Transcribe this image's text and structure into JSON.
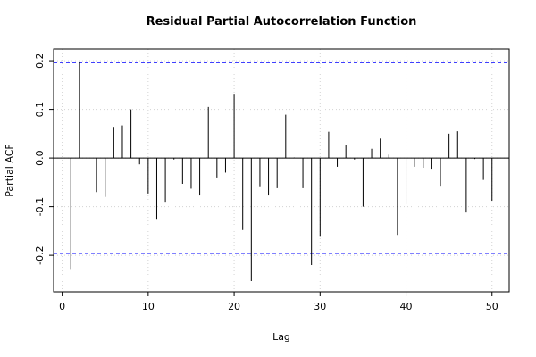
{
  "chart_data": {
    "type": "pacf",
    "title": "Residual Partial Autocorrelation Function",
    "x_label": "Lag",
    "y_label": "Partial ACF",
    "x": [
      1,
      2,
      3,
      4,
      5,
      6,
      7,
      8,
      9,
      10,
      11,
      12,
      13,
      14,
      15,
      16,
      17,
      18,
      19,
      20,
      21,
      22,
      23,
      24,
      25,
      26,
      27,
      28,
      29,
      30,
      31,
      32,
      33,
      34,
      35,
      36,
      37,
      38,
      39,
      40,
      41,
      42,
      43,
      44,
      45,
      46,
      47,
      48,
      49,
      50
    ],
    "values": [
      -0.228,
      0.197,
      0.083,
      -0.07,
      -0.08,
      0.064,
      0.067,
      0.1,
      -0.013,
      -0.073,
      -0.125,
      -0.09,
      -0.003,
      -0.053,
      -0.063,
      -0.077,
      0.105,
      -0.04,
      -0.03,
      0.132,
      -0.148,
      -0.253,
      -0.058,
      -0.077,
      -0.062,
      0.089,
      0.001,
      -0.062,
      -0.22,
      -0.16,
      0.054,
      -0.018,
      0.026,
      -0.003,
      -0.1,
      0.019,
      0.04,
      0.007,
      -0.158,
      -0.095,
      -0.018,
      -0.02,
      -0.022,
      -0.057,
      0.05,
      0.055,
      -0.112,
      -0.002,
      -0.045,
      -0.088
    ],
    "color": "#000000",
    "confidence_limits": [
      -0.196,
      0.196
    ],
    "confidence_color": "#0000ff",
    "xlim": [
      -1,
      52
    ],
    "ylim": [
      -0.275,
      0.224
    ],
    "xticks": [
      0,
      10,
      20,
      30,
      40,
      50
    ],
    "yticks": [
      -0.2,
      -0.1,
      {
        "value": 0,
        "label": "0.0"
      },
      0.1,
      0.2
    ],
    "grid": true
  }
}
